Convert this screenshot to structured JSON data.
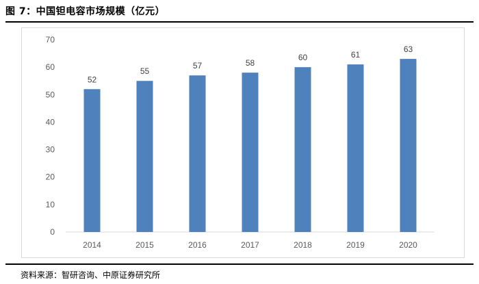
{
  "header": {
    "title": "图 7：中国钽电容市场规模（亿元）"
  },
  "footer": {
    "source": "资料来源：智研咨询、中原证券研究所"
  },
  "chart_data": {
    "type": "bar",
    "categories": [
      "2014",
      "2015",
      "2016",
      "2017",
      "2018",
      "2019",
      "2020"
    ],
    "values": [
      52,
      55,
      57,
      58,
      60,
      61,
      63
    ],
    "title": "中国钽电容市场规模（亿元）",
    "xlabel": "",
    "ylabel": "",
    "ylim": [
      0,
      70
    ],
    "yticks": [
      0,
      10,
      20,
      30,
      40,
      50,
      60,
      70
    ],
    "grid": false,
    "legend": "none",
    "data_labels": true,
    "bar_color": "#4f81bd"
  }
}
